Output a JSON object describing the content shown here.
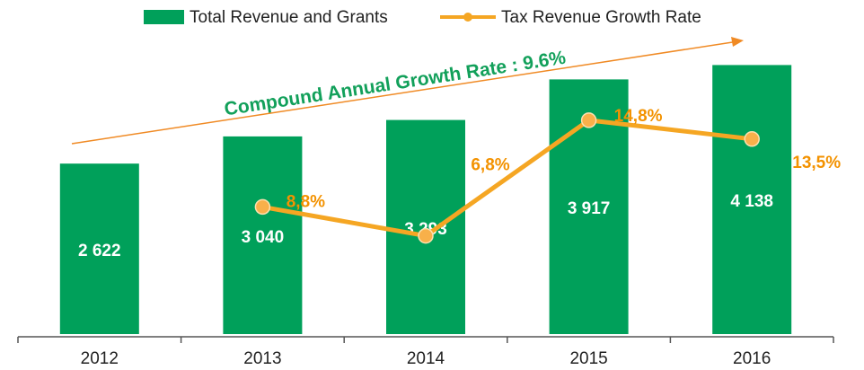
{
  "chart_data": {
    "type": "bar",
    "annotation": "Compound Annual Growth Rate : 9.6%",
    "categories": [
      "2012",
      "2013",
      "2014",
      "2015",
      "2016"
    ],
    "series": [
      {
        "name": "Total Revenue and Grants",
        "type": "bar",
        "color": "#00a05a",
        "values": [
          2622,
          3040,
          3293,
          3917,
          4138
        ],
        "value_labels": [
          "2 622",
          "3 040",
          "3 293",
          "3 917",
          "4 138"
        ]
      },
      {
        "name": "Tax Revenue Growth Rate",
        "type": "line",
        "axis": "y2",
        "color": "#f5a623",
        "values": [
          null,
          8.8,
          6.8,
          14.8,
          13.5
        ],
        "value_labels": [
          null,
          "8,8%",
          "6,8%",
          "14,8%",
          "13,5%"
        ]
      }
    ],
    "ylim": [
      0,
      5000
    ],
    "y2lim": [
      0,
      22.5
    ],
    "grid": false
  }
}
